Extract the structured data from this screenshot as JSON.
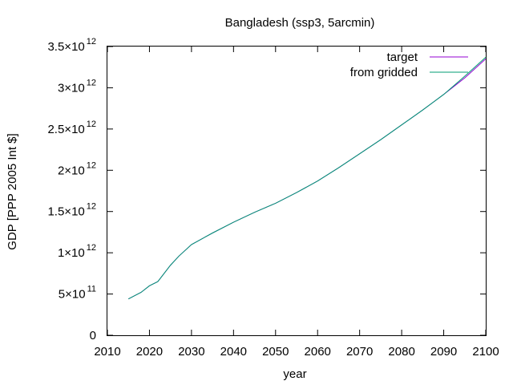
{
  "chart_data": {
    "type": "line",
    "title": "Bangladesh (ssp3, 5arcmin)",
    "xlabel": "year",
    "ylabel": "GDP [PPP 2005 Int $]",
    "xlim": [
      2010,
      2100
    ],
    "ylim": [
      0,
      3500000000000
    ],
    "grid": false,
    "legend_position": "top-right",
    "x_ticks": [
      2010,
      2020,
      2030,
      2040,
      2050,
      2060,
      2070,
      2080,
      2090,
      2100
    ],
    "y_ticks": [
      {
        "value": 0,
        "mantissa": "0",
        "exponent": ""
      },
      {
        "value": 500000000000,
        "mantissa": "5×10",
        "exponent": "11"
      },
      {
        "value": 1000000000000,
        "mantissa": "1×10",
        "exponent": "12"
      },
      {
        "value": 1500000000000,
        "mantissa": "1.5×10",
        "exponent": "12"
      },
      {
        "value": 2000000000000,
        "mantissa": "2×10",
        "exponent": "12"
      },
      {
        "value": 2500000000000,
        "mantissa": "2.5×10",
        "exponent": "12"
      },
      {
        "value": 3000000000000,
        "mantissa": "3×10",
        "exponent": "12"
      },
      {
        "value": 3500000000000,
        "mantissa": "3.5×10",
        "exponent": "12"
      }
    ],
    "x": [
      2015,
      2018,
      2020,
      2022,
      2025,
      2027,
      2030,
      2035,
      2040,
      2045,
      2050,
      2055,
      2060,
      2065,
      2070,
      2075,
      2080,
      2085,
      2090,
      2095,
      2100
    ],
    "series": [
      {
        "name": "target",
        "color": "#9400d3",
        "values": [
          440000000000.0,
          520000000000.0,
          600000000000.0,
          650000000000.0,
          850000000000.0,
          960000000000.0,
          1100000000000.0,
          1240000000000.0,
          1370000000000.0,
          1490000000000.0,
          1600000000000.0,
          1730000000000.0,
          1870000000000.0,
          2030000000000.0,
          2200000000000.0,
          2370000000000.0,
          2550000000000.0,
          2730000000000.0,
          2920000000000.0,
          3120000000000.0,
          3350000000000.0
        ]
      },
      {
        "name": "from gridded",
        "color": "#009e73",
        "values": [
          440000000000.0,
          520000000000.0,
          600000000000.0,
          650000000000.0,
          850000000000.0,
          960000000000.0,
          1100000000000.0,
          1240000000000.0,
          1370000000000.0,
          1490000000000.0,
          1600000000000.0,
          1730000000000.0,
          1870000000000.0,
          2030000000000.0,
          2200000000000.0,
          2370000000000.0,
          2550000000000.0,
          2730000000000.0,
          2920000000000.0,
          3140000000000.0,
          3370000000000.0
        ]
      }
    ]
  }
}
